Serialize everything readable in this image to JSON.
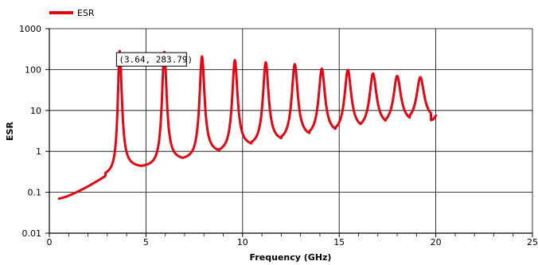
{
  "chart_data": {
    "type": "line",
    "xlabel": "Frequency (GHz)",
    "ylabel": "ESR",
    "x_scale": "linear",
    "y_scale": "log",
    "xlim": [
      0,
      25
    ],
    "ylim": [
      0.01,
      1000
    ],
    "x_ticks": [
      "0",
      "5",
      "10",
      "15",
      "20",
      "25"
    ],
    "y_ticks": [
      "0.01",
      "0.1",
      "1",
      "10",
      "100",
      "1000"
    ],
    "grid": true,
    "legend": {
      "position": "top-left",
      "entries": [
        "ESR"
      ]
    },
    "series": [
      {
        "name": "ESR",
        "color": "#e30613",
        "resonances": [
          {
            "x": 3.64,
            "y": 283.79
          },
          {
            "x": 5.95,
            "y": 270
          },
          {
            "x": 7.9,
            "y": 210
          },
          {
            "x": 9.6,
            "y": 170
          },
          {
            "x": 11.2,
            "y": 150
          },
          {
            "x": 12.7,
            "y": 135
          },
          {
            "x": 14.1,
            "y": 105
          },
          {
            "x": 15.45,
            "y": 98
          },
          {
            "x": 16.75,
            "y": 80
          },
          {
            "x": 18.0,
            "y": 70
          },
          {
            "x": 19.2,
            "y": 65
          }
        ],
        "minima": [
          {
            "x": 4.75,
            "y": 0.4
          },
          {
            "x": 6.9,
            "y": 0.6
          },
          {
            "x": 8.8,
            "y": 0.9
          },
          {
            "x": 10.45,
            "y": 1.3
          },
          {
            "x": 12.0,
            "y": 1.7
          },
          {
            "x": 13.45,
            "y": 2.2
          },
          {
            "x": 14.8,
            "y": 2.7
          },
          {
            "x": 16.1,
            "y": 3.4
          },
          {
            "x": 17.4,
            "y": 4.2
          },
          {
            "x": 18.65,
            "y": 5.0
          },
          {
            "x": 19.75,
            "y": 5.8
          }
        ],
        "start": {
          "x": 0.5,
          "y": 0.07
        },
        "knee": {
          "x": 2.9,
          "y": 0.25
        },
        "end": {
          "x": 20.0,
          "y": 7.5
        }
      }
    ],
    "annotation": {
      "text": "(3.64, 283.79)",
      "x": 3.64,
      "y": 283.79
    }
  }
}
